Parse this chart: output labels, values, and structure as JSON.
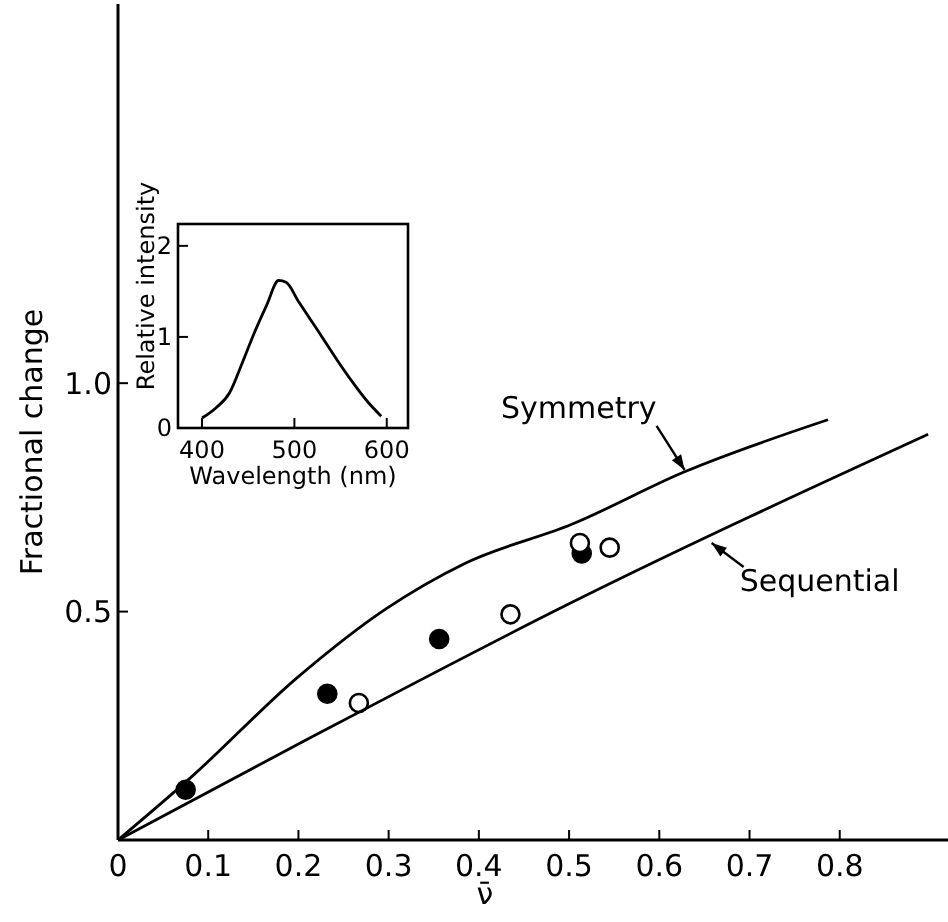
{
  "chart_data": [
    {
      "type": "scatter",
      "xlabel": "ν̄",
      "ylabel": "Fractional change",
      "xlim": [
        0,
        0.92
      ],
      "ylim": [
        0,
        1.83
      ],
      "xticks": [
        0,
        0.1,
        0.2,
        0.3,
        0.4,
        0.5,
        0.6,
        0.7,
        0.8
      ],
      "yticks": [
        0.5,
        {
          "value": 1,
          "label": "1.0"
        }
      ],
      "grid": false,
      "series": [
        {
          "type": "scatter",
          "marker": "circle",
          "color": "#000000",
          "x": [
            0.075,
            0.232,
            0.356,
            0.514
          ],
          "values": [
            0.11,
            0.32,
            0.44,
            0.627
          ]
        },
        {
          "type": "scatter",
          "marker": "circle",
          "color": "#ffffff",
          "x": [
            0.267,
            0.435,
            0.512,
            0.545
          ],
          "values": [
            0.3,
            0.494,
            0.65,
            0.64
          ]
        },
        {
          "type": "line",
          "color": "#000000",
          "x": [
            0,
            0.083,
            0.199,
            0.297,
            0.385,
            0.503,
            0.628,
            0.787
          ],
          "values": [
            0,
            0.141,
            0.356,
            0.506,
            0.606,
            0.691,
            0.806,
            0.92
          ]
        },
        {
          "type": "line",
          "color": "#000000",
          "x": [
            0,
            0.2,
            0.5,
            0.898
          ],
          "values": [
            0,
            0.21,
            0.517,
            0.888
          ]
        }
      ],
      "annotations": [
        {
          "text": "Symmetry",
          "x": 0.628,
          "y": 0.81
        },
        {
          "text": "Sequential",
          "x": 0.658,
          "y": 0.65
        }
      ]
    },
    {
      "type": "line",
      "xlabel": "Wavelength (nm)",
      "ylabel": "Relative intensity",
      "xlim": [
        374,
        623
      ],
      "ylim": [
        0,
        2.24
      ],
      "xticks": [
        400,
        500,
        600
      ],
      "yticks": [
        0,
        1,
        2
      ],
      "series": [
        {
          "color": "#000000",
          "x": [
            400,
            415,
            430,
            443,
            456,
            470,
            483,
            491,
            505,
            528,
            546,
            564,
            580,
            594
          ],
          "values": [
            0.11,
            0.22,
            0.39,
            0.7,
            1.03,
            1.35,
            1.62,
            1.6,
            1.38,
            1.03,
            0.75,
            0.49,
            0.28,
            0.13
          ]
        }
      ]
    }
  ]
}
